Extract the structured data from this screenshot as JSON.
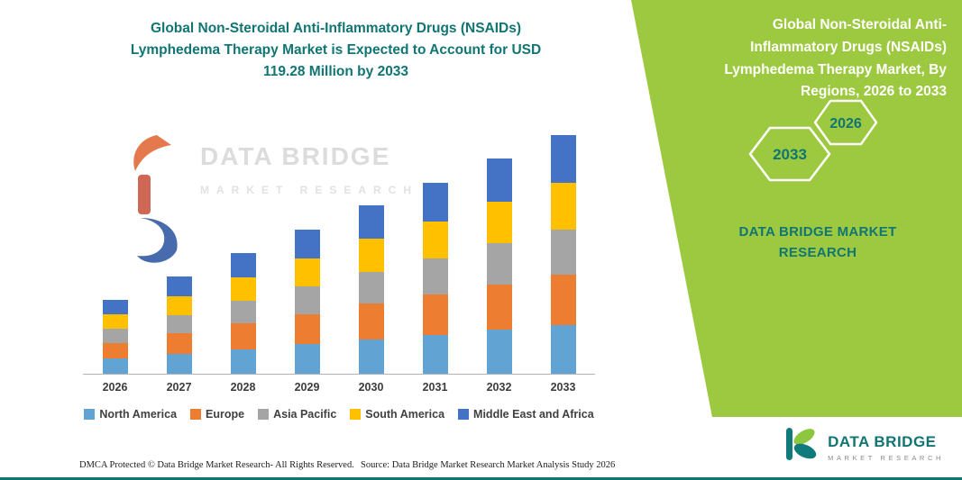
{
  "colors": {
    "accent_teal": "#107573",
    "panel_green": "#9CC93F",
    "watermark_gray": "#dcdcdc"
  },
  "left": {
    "title_lines": [
      "Global Non-Steroidal Anti-Inflammatory Drugs (NSAIDs)",
      "Lymphedema Therapy Market is Expected to Account for USD",
      "119.28 Million by 2033"
    ]
  },
  "watermark": {
    "brand": "DATA BRIDGE",
    "sub": "MARKET RESEARCH"
  },
  "chart_data": {
    "type": "bar",
    "stacked": true,
    "title": "Global Non-Steroidal Anti-Inflammatory Drugs (NSAIDs) Lymphedema Therapy Market is Expected to Account for USD 119.28 Million by 2033",
    "unit": "USD Million",
    "xlabel": "",
    "ylabel": "",
    "ylim": [
      0,
      130
    ],
    "axis_labels_visible": false,
    "grid": false,
    "legend_position": "bottom",
    "categories": [
      "2026",
      "2027",
      "2028",
      "2029",
      "2030",
      "2031",
      "2032",
      "2033"
    ],
    "series": [
      {
        "name": "North America",
        "color": "#61A3D2",
        "values": [
          7.6,
          10.0,
          12.4,
          14.8,
          17.3,
          19.6,
          22.1,
          24.4
        ]
      },
      {
        "name": "Europe",
        "color": "#ED7D31",
        "values": [
          7.7,
          10.2,
          12.7,
          15.1,
          17.7,
          20.0,
          22.6,
          25.1
        ]
      },
      {
        "name": "Asia Pacific",
        "color": "#A5A5A5",
        "values": [
          7.0,
          9.2,
          11.5,
          13.7,
          16.0,
          18.1,
          20.4,
          22.6
        ]
      },
      {
        "name": "South America",
        "color": "#FFC000",
        "values": [
          7.2,
          9.5,
          11.8,
          14.0,
          16.4,
          18.6,
          21.0,
          23.3
        ]
      },
      {
        "name": "Middle East and Africa",
        "color": "#4472C4",
        "values": [
          7.4,
          9.7,
          11.9,
          14.4,
          16.8,
          19.1,
          21.5,
          23.88
        ]
      }
    ],
    "totals": [
      36.9,
      48.6,
      60.3,
      72.0,
      84.2,
      95.4,
      107.6,
      119.28
    ],
    "highlight_value": "119.28 Million",
    "highlight_year": "2033"
  },
  "panel": {
    "bg_color": "#9CC93F",
    "title_lines": [
      "Global Non-Steroidal Anti-",
      "Inflammatory Drugs (NSAIDs)",
      "Lymphedema Therapy Market, By",
      "Regions, 2026 to 2033"
    ],
    "hex_back_year": "2033",
    "hex_front_year": "2026",
    "brand_lines": [
      "DATA BRIDGE MARKET",
      "RESEARCH"
    ]
  },
  "footer": {
    "dmca": "DMCA Protected © Data Bridge Market Research-  All Rights Reserved.",
    "source": "Source: Data Bridge Market Research  Market Analysis Study 2026",
    "brand": "DATA BRIDGE",
    "brand_sub": "MARKET RESEARCH"
  }
}
